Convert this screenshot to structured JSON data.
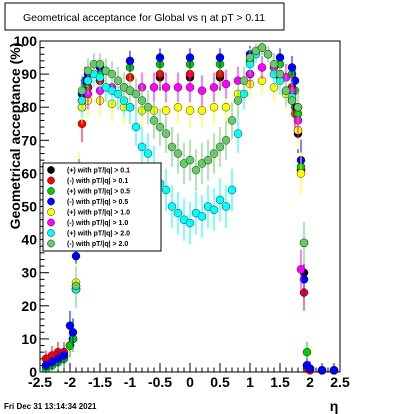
{
  "title": "Geometrical acceptance for Global vs   η at pT > 0.11",
  "footer": "Fri Dec 31 13:14:34 2021",
  "chart_data": {
    "type": "scatter",
    "title": "Geometrical acceptance for Global vs   η at pT > 0.11",
    "xlabel": "η",
    "ylabel": "Geometrical acceptance (%)",
    "xlim": [
      -2.5,
      2.5
    ],
    "ylim": [
      0,
      100
    ],
    "xticks": [
      "-2.5",
      "-2",
      "-1.5",
      "-1",
      "-0.5",
      "0",
      "0.5",
      "1",
      "1.5",
      "2",
      "2.5"
    ],
    "yticks": [
      "0",
      "10",
      "20",
      "30",
      "40",
      "50",
      "60",
      "70",
      "80",
      "90",
      "100"
    ],
    "grid": false,
    "legend_position": "left-middle",
    "series": [
      {
        "name": "(+) with pT/|q| > 0.1",
        "color": "#000000",
        "marker": "circle",
        "x": [
          -2.4,
          -2.3,
          -2.2,
          -2.1,
          -2.0,
          -1.95,
          -1.9,
          -1.85,
          -1.8,
          -1.75,
          -1.7,
          -1.5,
          -1.0,
          -0.5,
          0.0,
          0.5,
          1.0,
          1.5,
          1.7,
          1.75,
          1.8,
          1.85,
          1.9,
          1.95,
          2.0,
          2.2,
          2.4
        ],
        "y": [
          2,
          3,
          4,
          5,
          8,
          10,
          25,
          58,
          80,
          85,
          86,
          88,
          89,
          89,
          89,
          89,
          90,
          89,
          86,
          80,
          72,
          61,
          30,
          2,
          1,
          0.5,
          0.5
        ]
      },
      {
        "name": "(-) with pT/|q| > 0.1",
        "color": "#ff0000",
        "marker": "circle",
        "x": [
          -2.4,
          -2.3,
          -2.2,
          -2.1,
          -2.0,
          -1.95,
          -1.9,
          -1.85,
          -1.8,
          -1.75,
          -1.7,
          -1.5,
          -1.0,
          -0.5,
          0.0,
          0.5,
          1.0,
          1.5,
          1.7,
          1.75,
          1.8,
          1.85,
          1.9,
          1.95,
          2.0,
          2.2,
          2.4
        ],
        "y": [
          4,
          5,
          6,
          6,
          8,
          10,
          25,
          60,
          75,
          84,
          86,
          88,
          89,
          90,
          90,
          90,
          90,
          90,
          86,
          78,
          73,
          61,
          24,
          1,
          0.5,
          0.5,
          0.5
        ]
      },
      {
        "name": "(+) with pT/|q| > 0.5",
        "color": "#00cc00",
        "marker": "circle",
        "x": [
          -2.4,
          -2.3,
          -2.2,
          -2.1,
          -2.0,
          -1.95,
          -1.9,
          -1.85,
          -1.8,
          -1.75,
          -1.7,
          -1.5,
          -1.0,
          -0.5,
          0.0,
          0.5,
          1.0,
          1.5,
          1.7,
          1.75,
          1.8,
          1.85,
          1.9,
          1.95,
          2.0,
          2.2,
          2.4
        ],
        "y": [
          1,
          2,
          3,
          4,
          8,
          10,
          26,
          55,
          82,
          87,
          88,
          90,
          92,
          93,
          93,
          93,
          94,
          93,
          90,
          85,
          78,
          62,
          39,
          6,
          1,
          0.5,
          0.5
        ]
      },
      {
        "name": "(-) with pT/|q| > 0.5",
        "color": "#0000ff",
        "marker": "circle",
        "x": [
          -2.4,
          -2.3,
          -2.2,
          -2.1,
          -2.0,
          -1.95,
          -1.9,
          -1.85,
          -1.8,
          -1.75,
          -1.7,
          -1.5,
          -1.0,
          -0.5,
          0.0,
          0.5,
          1.0,
          1.5,
          1.7,
          1.75,
          1.8,
          1.85,
          1.9,
          1.95,
          2.0,
          2.2,
          2.4
        ],
        "y": [
          2,
          3,
          4,
          5,
          14,
          12,
          35,
          60,
          84,
          88,
          90,
          92,
          94,
          95,
          95,
          95,
          96,
          95,
          92,
          88,
          80,
          64,
          28,
          2,
          1,
          0.5,
          0.5
        ]
      },
      {
        "name": "(+) with pT/|q| > 1.0",
        "color": "#ffff00",
        "marker": "circle",
        "x": [
          -1.9,
          -1.85,
          -1.8,
          -1.7,
          -1.5,
          -1.3,
          -1.1,
          -1.0,
          -0.8,
          -0.6,
          -0.4,
          -0.2,
          0.0,
          0.2,
          0.4,
          0.6,
          0.8,
          1.0,
          1.2,
          1.4,
          1.6,
          1.7,
          1.8,
          1.85
        ],
        "y": [
          27,
          60,
          80,
          82,
          82,
          81,
          80,
          80,
          79,
          79,
          79,
          80,
          79,
          79,
          80,
          80,
          84,
          87,
          88,
          86,
          84,
          82,
          73,
          60
        ]
      },
      {
        "name": "(-) with pT/|q| > 1.0",
        "color": "#ff00ff",
        "marker": "circle",
        "x": [
          -1.9,
          -1.85,
          -1.8,
          -1.7,
          -1.5,
          -1.3,
          -1.1,
          -1.0,
          -0.8,
          -0.6,
          -0.4,
          -0.2,
          0.0,
          0.2,
          0.4,
          0.6,
          0.8,
          1.0,
          1.2,
          1.4,
          1.6,
          1.7,
          1.8,
          1.85
        ],
        "y": [
          25,
          58,
          82,
          84,
          85,
          86,
          86,
          85,
          86,
          86,
          86,
          86,
          86,
          85,
          86,
          87,
          88,
          90,
          92,
          92,
          89,
          85,
          76,
          31
        ]
      },
      {
        "name": "(+) with pT/|q| > 2.0",
        "color": "#00ffff",
        "marker": "circle",
        "x": [
          -1.9,
          -1.8,
          -1.7,
          -1.6,
          -1.5,
          -1.4,
          -1.3,
          -1.2,
          -1.1,
          -1.0,
          -0.9,
          -0.8,
          -0.7,
          -0.6,
          -0.5,
          -0.4,
          -0.3,
          -0.2,
          -0.1,
          0.0,
          0.1,
          0.2,
          0.3,
          0.4,
          0.5,
          0.6,
          0.7,
          0.8,
          0.9,
          1.0,
          1.1,
          1.2,
          1.3,
          1.4,
          1.5,
          1.6,
          1.7
        ],
        "y": [
          25,
          82,
          88,
          90,
          89,
          86,
          85,
          84,
          82,
          80,
          74,
          68,
          66,
          62,
          57,
          55,
          50,
          48,
          46,
          45,
          48,
          47,
          50,
          49,
          52,
          50,
          55,
          72,
          84,
          93,
          96,
          98,
          96,
          90,
          88,
          85,
          83
        ]
      },
      {
        "name": "(-) with pT/|q| > 2.0",
        "color": "#66cc66",
        "marker": "circle",
        "x": [
          -1.9,
          -1.8,
          -1.7,
          -1.6,
          -1.5,
          -1.4,
          -1.3,
          -1.2,
          -1.1,
          -1.0,
          -0.9,
          -0.8,
          -0.7,
          -0.6,
          -0.5,
          -0.4,
          -0.3,
          -0.2,
          -0.1,
          0.0,
          0.1,
          0.2,
          0.3,
          0.4,
          0.5,
          0.6,
          0.7,
          0.8,
          0.9,
          1.0,
          1.1,
          1.2,
          1.3,
          1.4,
          1.5,
          1.6,
          1.7,
          1.8,
          1.9
        ],
        "y": [
          26,
          85,
          91,
          93,
          93,
          91,
          90,
          88,
          86,
          85,
          84,
          82,
          80,
          76,
          74,
          72,
          68,
          66,
          63,
          64,
          61,
          63,
          64,
          66,
          68,
          70,
          76,
          82,
          88,
          95,
          97,
          98,
          96,
          93,
          90,
          85,
          82,
          80,
          39
        ]
      }
    ]
  }
}
